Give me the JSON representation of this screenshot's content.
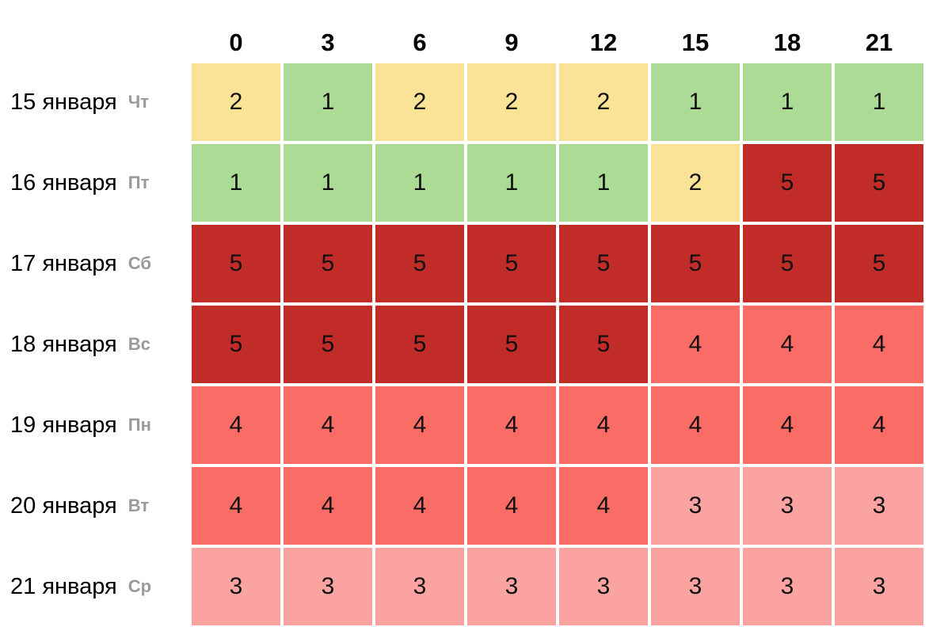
{
  "chart_data": {
    "type": "heatmap",
    "title": "",
    "columns": [
      "0",
      "3",
      "6",
      "9",
      "12",
      "15",
      "18",
      "21"
    ],
    "rows": [
      {
        "date": "15 января",
        "day": "Чт",
        "values": [
          2,
          1,
          2,
          2,
          2,
          1,
          1,
          1
        ]
      },
      {
        "date": "16 января",
        "day": "Пт",
        "values": [
          1,
          1,
          1,
          1,
          1,
          2,
          5,
          5
        ]
      },
      {
        "date": "17 января",
        "day": "Сб",
        "values": [
          5,
          5,
          5,
          5,
          5,
          5,
          5,
          5
        ]
      },
      {
        "date": "18 января",
        "day": "Вс",
        "values": [
          5,
          5,
          5,
          5,
          5,
          4,
          4,
          4
        ]
      },
      {
        "date": "19 января",
        "day": "Пн",
        "values": [
          4,
          4,
          4,
          4,
          4,
          4,
          4,
          4
        ]
      },
      {
        "date": "20 января",
        "day": "Вт",
        "values": [
          4,
          4,
          4,
          4,
          4,
          3,
          3,
          3
        ]
      },
      {
        "date": "21 января",
        "day": "Ср",
        "values": [
          3,
          3,
          3,
          3,
          3,
          3,
          3,
          3
        ]
      }
    ],
    "value_colors": {
      "1": "#abdb95",
      "2": "#fae396",
      "3": "#faa3a0",
      "4": "#fa6c66",
      "5": "#c12b28"
    },
    "layout": {
      "grid": "on",
      "gridline_color": "#ffffff",
      "background": "#ffffff"
    }
  }
}
